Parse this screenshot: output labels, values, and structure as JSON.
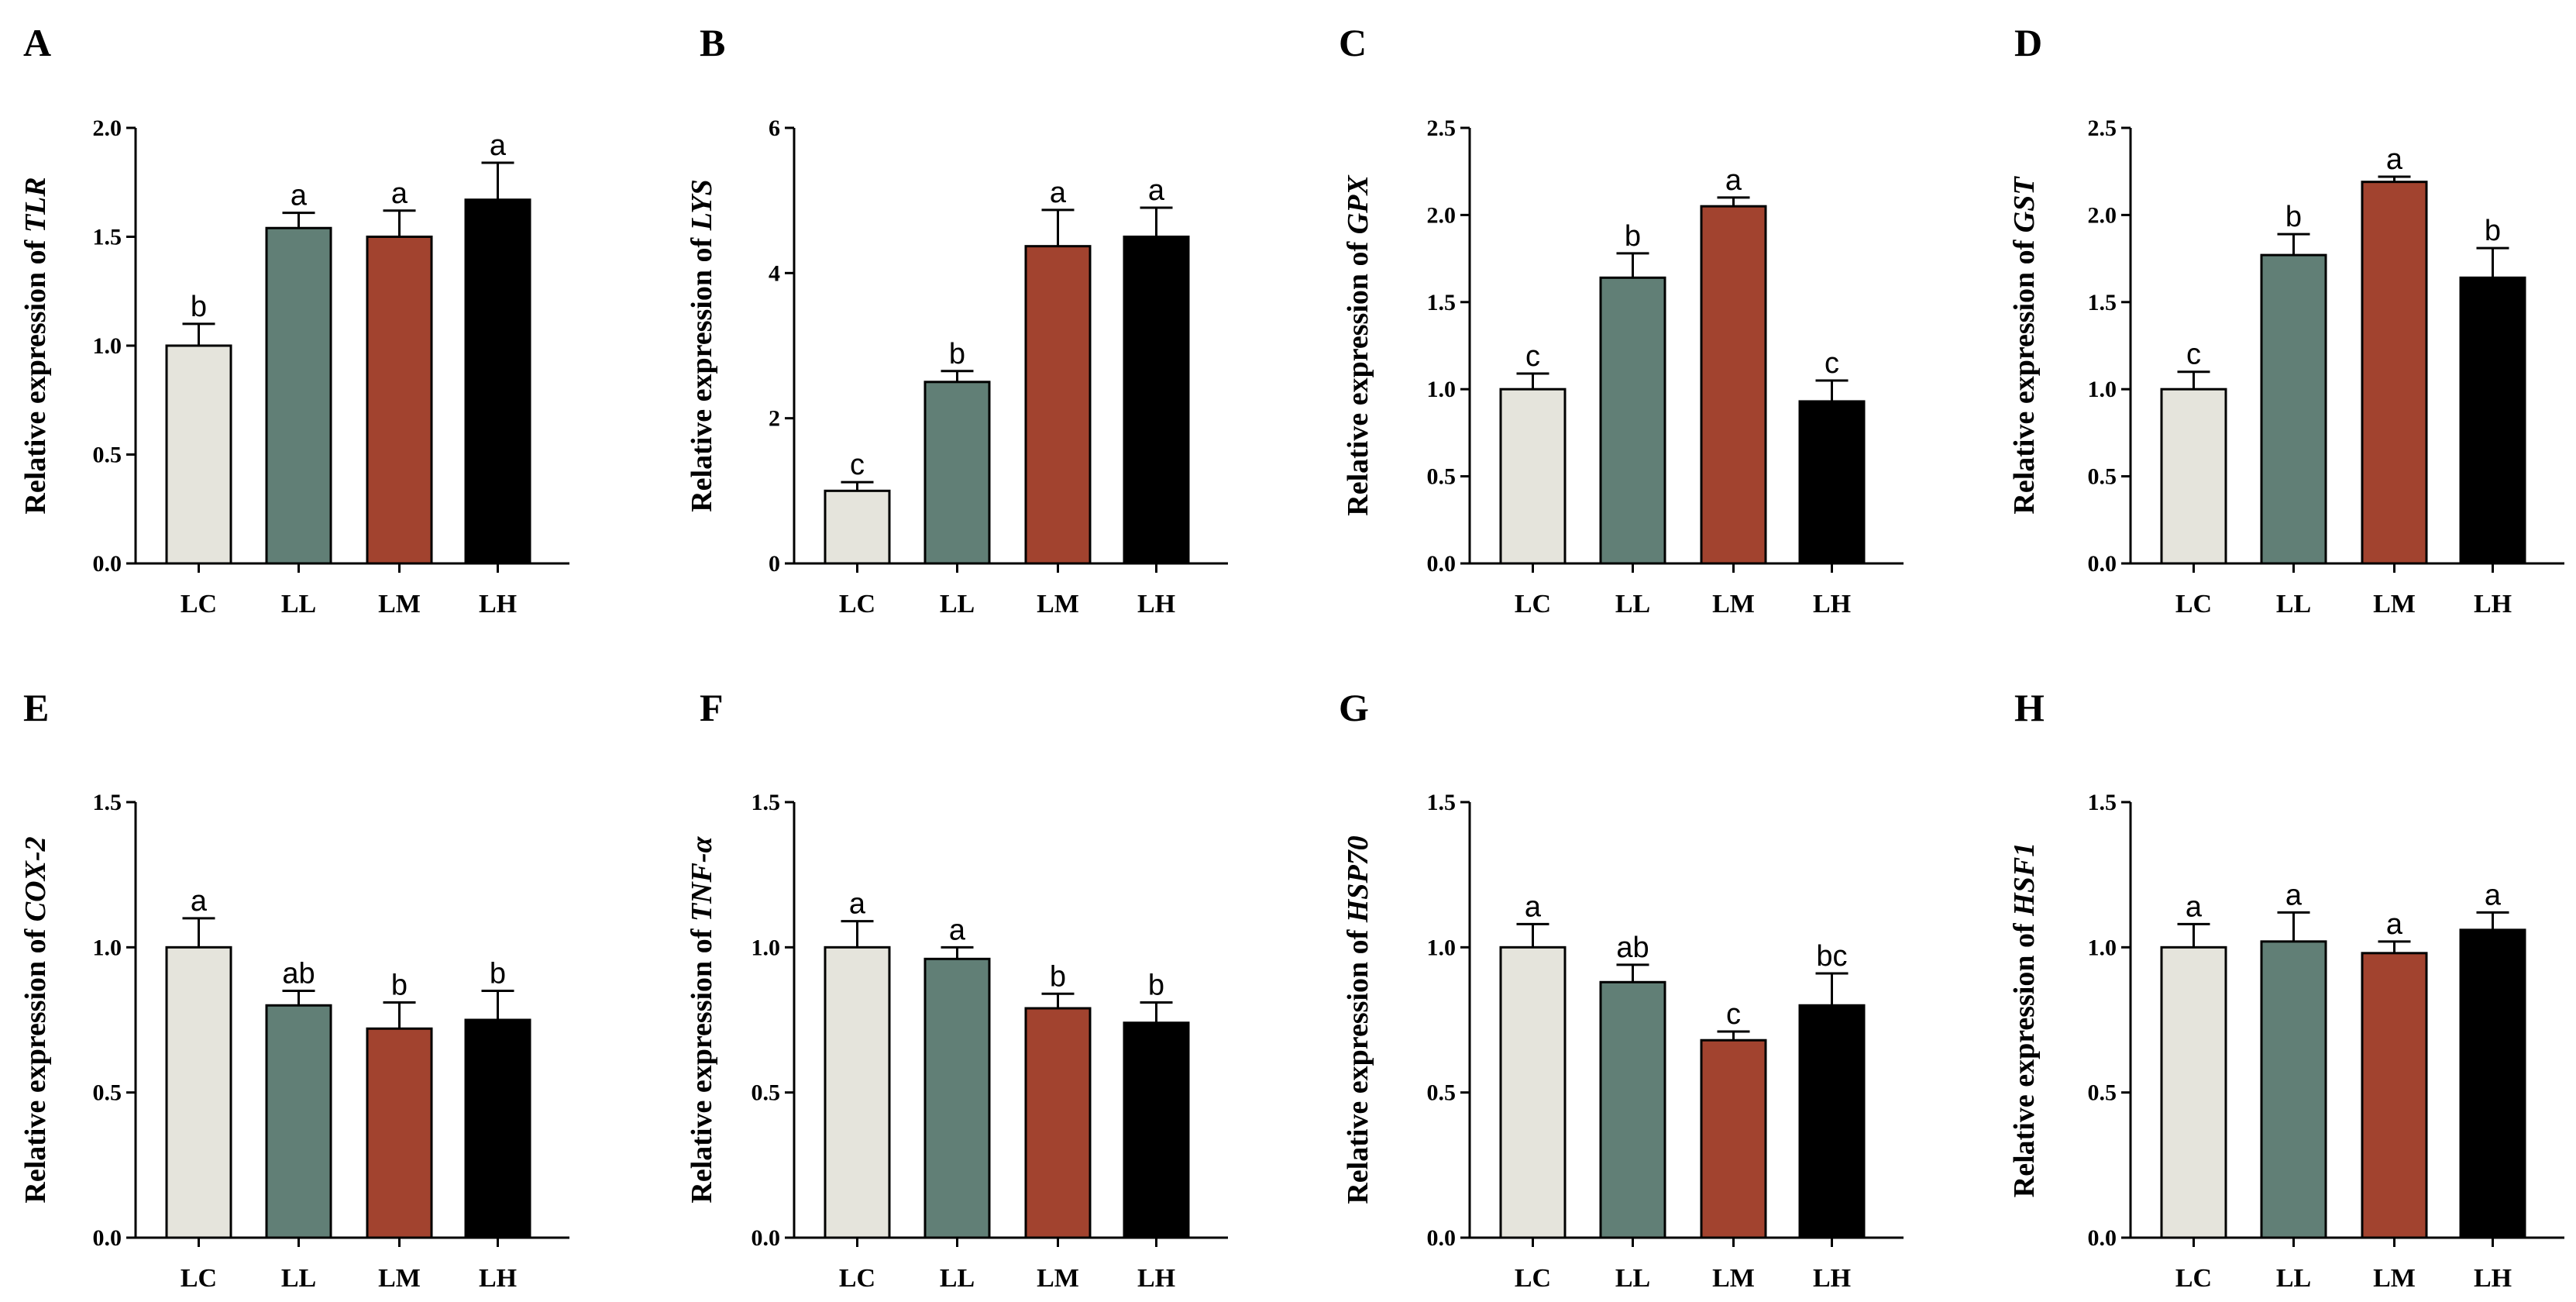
{
  "colors": {
    "LC": "#e5e4dc",
    "LL": "#617f76",
    "LM": "#a2432f",
    "LH": "#000000",
    "axis": "#000000"
  },
  "chart_data": [
    {
      "type": "bar",
      "panel": "A",
      "ylabel_prefix": "Relative expression of ",
      "gene": "TLR",
      "categories": [
        "LC",
        "LL",
        "LM",
        "LH"
      ],
      "values": [
        1.0,
        1.54,
        1.5,
        1.67
      ],
      "errors": [
        0.1,
        0.07,
        0.12,
        0.17
      ],
      "letters": [
        "b",
        "a",
        "a",
        "a"
      ],
      "ylim": [
        0,
        2.0
      ],
      "yticks": [
        "0.0",
        "0.5",
        "1.0",
        "1.5",
        "2.0"
      ]
    },
    {
      "type": "bar",
      "panel": "B",
      "ylabel_prefix": "Relative expression of ",
      "gene": "LYS",
      "categories": [
        "LC",
        "LL",
        "LM",
        "LH"
      ],
      "values": [
        1.0,
        2.5,
        4.37,
        4.5
      ],
      "errors": [
        0.12,
        0.15,
        0.5,
        0.4
      ],
      "letters": [
        "c",
        "b",
        "a",
        "a"
      ],
      "ylim": [
        0,
        6
      ],
      "yticks": [
        "0",
        "2",
        "4",
        "6"
      ]
    },
    {
      "type": "bar",
      "panel": "C",
      "ylabel_prefix": "Relative expression of ",
      "gene": "GPX",
      "categories": [
        "LC",
        "LL",
        "LM",
        "LH"
      ],
      "values": [
        1.0,
        1.64,
        2.05,
        0.93
      ],
      "errors": [
        0.09,
        0.14,
        0.05,
        0.12
      ],
      "letters": [
        "c",
        "b",
        "a",
        "c"
      ],
      "ylim": [
        0,
        2.5
      ],
      "yticks": [
        "0.0",
        "0.5",
        "1.0",
        "1.5",
        "2.0",
        "2.5"
      ]
    },
    {
      "type": "bar",
      "panel": "D",
      "ylabel_prefix": "Relative expression of ",
      "gene": "GST",
      "categories": [
        "LC",
        "LL",
        "LM",
        "LH"
      ],
      "values": [
        1.0,
        1.77,
        2.19,
        1.64
      ],
      "errors": [
        0.1,
        0.12,
        0.03,
        0.17
      ],
      "letters": [
        "c",
        "b",
        "a",
        "b"
      ],
      "ylim": [
        0,
        2.5
      ],
      "yticks": [
        "0.0",
        "0.5",
        "1.0",
        "1.5",
        "2.0",
        "2.5"
      ]
    },
    {
      "type": "bar",
      "panel": "E",
      "ylabel_prefix": "Relative expression of ",
      "gene": "COX-2",
      "categories": [
        "LC",
        "LL",
        "LM",
        "LH"
      ],
      "values": [
        1.0,
        0.8,
        0.72,
        0.75
      ],
      "errors": [
        0.1,
        0.05,
        0.09,
        0.1
      ],
      "letters": [
        "a",
        "ab",
        "b",
        "b"
      ],
      "ylim": [
        0,
        1.5
      ],
      "yticks": [
        "0.0",
        "0.5",
        "1.0",
        "1.5"
      ]
    },
    {
      "type": "bar",
      "panel": "F",
      "ylabel_prefix": "Relative expression of ",
      "gene": "TNF-α",
      "categories": [
        "LC",
        "LL",
        "LM",
        "LH"
      ],
      "values": [
        1.0,
        0.96,
        0.79,
        0.74
      ],
      "errors": [
        0.09,
        0.04,
        0.05,
        0.07
      ],
      "letters": [
        "a",
        "a",
        "b",
        "b"
      ],
      "ylim": [
        0,
        1.5
      ],
      "yticks": [
        "0.0",
        "0.5",
        "1.0",
        "1.5"
      ]
    },
    {
      "type": "bar",
      "panel": "G",
      "ylabel_prefix": "Relative expression of ",
      "gene": "HSP70",
      "categories": [
        "LC",
        "LL",
        "LM",
        "LH"
      ],
      "values": [
        1.0,
        0.88,
        0.68,
        0.8
      ],
      "errors": [
        0.08,
        0.06,
        0.03,
        0.11
      ],
      "letters": [
        "a",
        "ab",
        "c",
        "bc"
      ],
      "ylim": [
        0,
        1.5
      ],
      "yticks": [
        "0.0",
        "0.5",
        "1.0",
        "1.5"
      ]
    },
    {
      "type": "bar",
      "panel": "H",
      "ylabel_prefix": "Relative expression of ",
      "gene": "HSF1",
      "categories": [
        "LC",
        "LL",
        "LM",
        "LH"
      ],
      "values": [
        1.0,
        1.02,
        0.98,
        1.06
      ],
      "errors": [
        0.08,
        0.1,
        0.04,
        0.06
      ],
      "letters": [
        "a",
        "a",
        "a",
        "a"
      ],
      "ylim": [
        0,
        1.5
      ],
      "yticks": [
        "0.0",
        "0.5",
        "1.0",
        "1.5"
      ]
    }
  ]
}
